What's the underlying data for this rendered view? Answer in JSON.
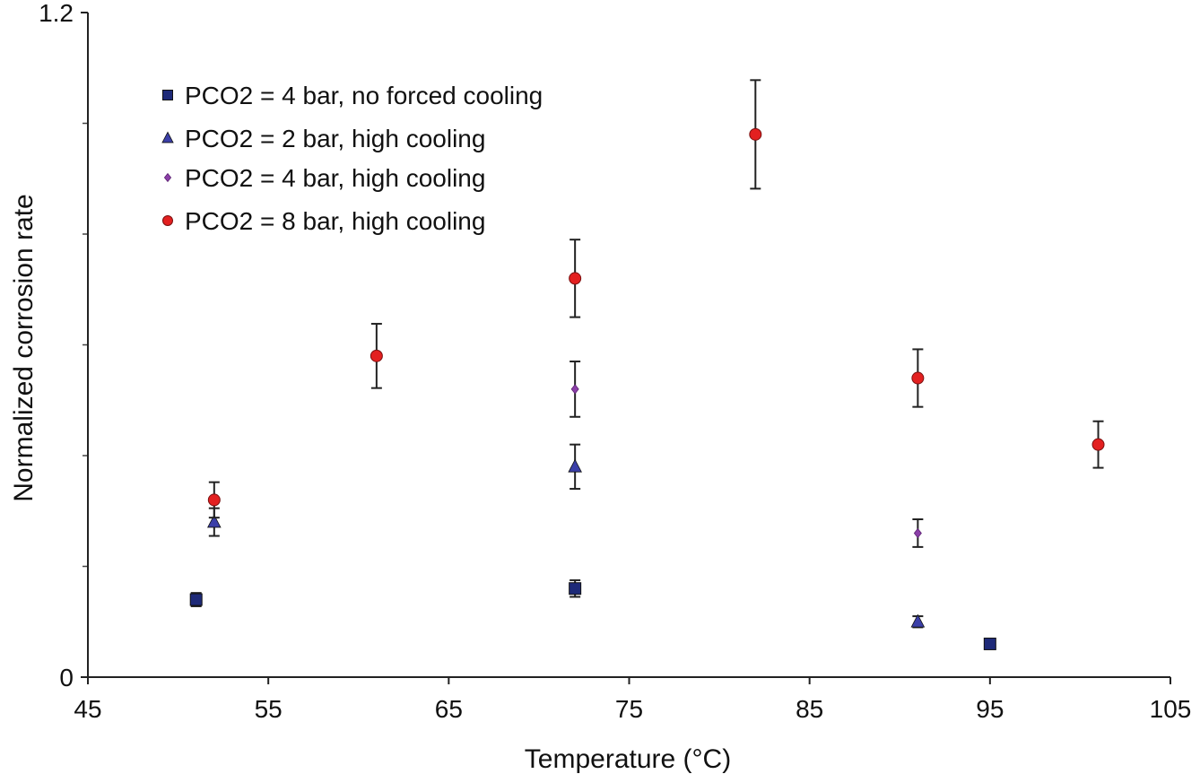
{
  "chart_data": {
    "type": "scatter",
    "title": "",
    "xlabel": "Temperature (°C)",
    "ylabel": "Normalized corrosion rate",
    "xlim": [
      45,
      105
    ],
    "ylim": [
      0,
      1.2
    ],
    "x_ticks": [
      "45",
      "55",
      "65",
      "75",
      "85",
      "95",
      "105"
    ],
    "y_ticks": [
      "0",
      "1.2"
    ],
    "y_minor_ticks": [
      0.2,
      0.4,
      0.6,
      0.8,
      1.0
    ],
    "legend_position": "top-left",
    "series": [
      {
        "name": "PCO2 = 4 bar, no forced cooling",
        "marker": "square",
        "color": "#1e2a78",
        "points": [
          {
            "x": 51,
            "y": 0.14,
            "err": 0.012
          },
          {
            "x": 72,
            "y": 0.16,
            "err": 0.015
          },
          {
            "x": 95,
            "y": 0.06,
            "err": 0.008
          }
        ]
      },
      {
        "name": "PCO2 = 2 bar, high cooling",
        "marker": "triangle",
        "color": "#3b3fa8",
        "points": [
          {
            "x": 52,
            "y": 0.28,
            "err": 0.025
          },
          {
            "x": 72,
            "y": 0.38,
            "err": 0.04
          },
          {
            "x": 91,
            "y": 0.1,
            "err": 0.01
          }
        ]
      },
      {
        "name": "PCO2 = 4 bar, high cooling",
        "marker": "diamond",
        "color": "#8b3fa8",
        "points": [
          {
            "x": 72,
            "y": 0.52,
            "err": 0.05
          },
          {
            "x": 91,
            "y": 0.26,
            "err": 0.025
          }
        ]
      },
      {
        "name": "PCO2 = 8 bar, high cooling",
        "marker": "circle",
        "color": "#e32020",
        "points": [
          {
            "x": 52,
            "y": 0.32,
            "err": 0.032
          },
          {
            "x": 61,
            "y": 0.58,
            "err": 0.058
          },
          {
            "x": 72,
            "y": 0.72,
            "err": 0.07
          },
          {
            "x": 82,
            "y": 0.98,
            "err": 0.098
          },
          {
            "x": 91,
            "y": 0.54,
            "err": 0.052
          },
          {
            "x": 101,
            "y": 0.42,
            "err": 0.042
          }
        ]
      }
    ]
  }
}
